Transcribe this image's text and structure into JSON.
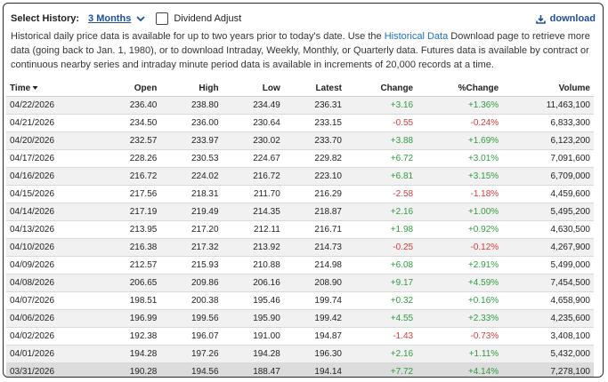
{
  "toolbar": {
    "select_history_label": "Select History:",
    "range_value": "3 Months",
    "dividend_adjust_label": "Dividend Adjust",
    "download_label": "download"
  },
  "description": {
    "part1": "Historical daily price data is available for up to two years prior to today's date. Use the ",
    "link": "Historical Data",
    "part2": " Download page to retrieve more data (going back to Jan. 1, 1980), or to download Intraday, Weekly, Monthly, or Quarterly data. Futures data is available by contract or continuous nearby series and intraday minute period data is available in increments of 20,000 records at a time."
  },
  "table": {
    "headers": [
      "Time",
      "Open",
      "High",
      "Low",
      "Latest",
      "Change",
      "%Change",
      "Volume"
    ],
    "rows": [
      [
        "04/22/2026",
        "236.40",
        "238.80",
        "234.49",
        "236.31",
        "+3.16",
        "+1.36%",
        "11,463,100"
      ],
      [
        "04/21/2026",
        "234.50",
        "236.00",
        "230.64",
        "233.15",
        "-0.55",
        "-0.24%",
        "6,833,300"
      ],
      [
        "04/20/2026",
        "232.57",
        "233.97",
        "230.02",
        "233.70",
        "+3.88",
        "+1.69%",
        "6,123,200"
      ],
      [
        "04/17/2026",
        "228.26",
        "230.53",
        "224.67",
        "229.82",
        "+6.72",
        "+3.01%",
        "7,091,600"
      ],
      [
        "04/16/2026",
        "216.72",
        "224.02",
        "216.72",
        "223.10",
        "+6.81",
        "+3.15%",
        "6,709,000"
      ],
      [
        "04/15/2026",
        "217.56",
        "218.31",
        "211.70",
        "216.29",
        "-2.58",
        "-1.18%",
        "4,459,600"
      ],
      [
        "04/14/2026",
        "217.19",
        "219.49",
        "214.35",
        "218.87",
        "+2.16",
        "+1.00%",
        "5,495,200"
      ],
      [
        "04/13/2026",
        "213.95",
        "217.20",
        "212.11",
        "216.71",
        "+1.98",
        "+0.92%",
        "4,630,500"
      ],
      [
        "04/10/2026",
        "216.38",
        "217.32",
        "213.92",
        "214.73",
        "-0.25",
        "-0.12%",
        "4,267,900"
      ],
      [
        "04/09/2026",
        "212.57",
        "215.93",
        "210.88",
        "214.98",
        "+6.08",
        "+2.91%",
        "5,499,000"
      ],
      [
        "04/08/2026",
        "206.65",
        "209.86",
        "206.16",
        "208.90",
        "+9.17",
        "+4.59%",
        "7,454,500"
      ],
      [
        "04/07/2026",
        "198.51",
        "200.38",
        "195.46",
        "199.74",
        "+0.32",
        "+0.16%",
        "4,658,900"
      ],
      [
        "04/06/2026",
        "196.99",
        "199.56",
        "195.90",
        "199.42",
        "+4.55",
        "+2.33%",
        "4,235,600"
      ],
      [
        "04/02/2026",
        "192.38",
        "196.07",
        "191.00",
        "194.87",
        "-1.43",
        "-0.73%",
        "3,408,100"
      ],
      [
        "04/01/2026",
        "194.28",
        "197.26",
        "194.28",
        "196.30",
        "+2.16",
        "+1.11%",
        "5,432,000"
      ],
      [
        "03/31/2026",
        "190.28",
        "194.56",
        "188.47",
        "194.14",
        "+7.72",
        "+4.14%",
        "7,278,100"
      ]
    ]
  }
}
